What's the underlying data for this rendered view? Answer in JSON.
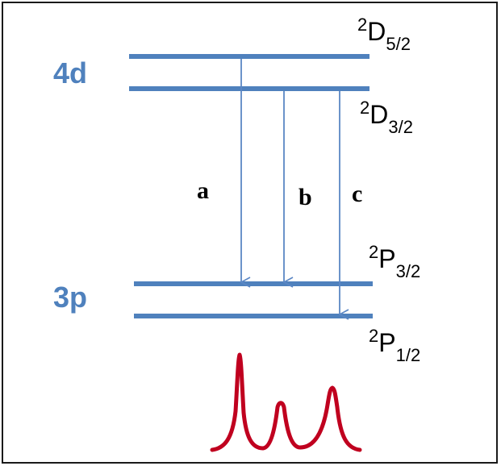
{
  "shells": {
    "upper": "4d",
    "lower": "3p"
  },
  "terms": {
    "d52": {
      "mult": "2",
      "letter": "D",
      "j": "5/2"
    },
    "d32": {
      "mult": "2",
      "letter": "D",
      "j": "3/2"
    },
    "p32": {
      "mult": "2",
      "letter": "P",
      "j": "3/2"
    },
    "p12": {
      "mult": "2",
      "letter": "P",
      "j": "1/2"
    }
  },
  "transitions": {
    "a": {
      "label": "a",
      "from": "2D5/2",
      "to": "2P3/2"
    },
    "b": {
      "label": "b",
      "from": "2D3/2",
      "to": "2P3/2"
    },
    "c": {
      "label": "c",
      "from": "2D3/2",
      "to": "2P1/2"
    }
  },
  "spectrum": {
    "peak_count": 3,
    "relative_heights": [
      1.0,
      0.45,
      0.6
    ]
  },
  "colors": {
    "levels": "#4f81bd",
    "arrows": "#5b87c5",
    "spectrum": "#c0001f",
    "frame": "#1a1a1a"
  }
}
